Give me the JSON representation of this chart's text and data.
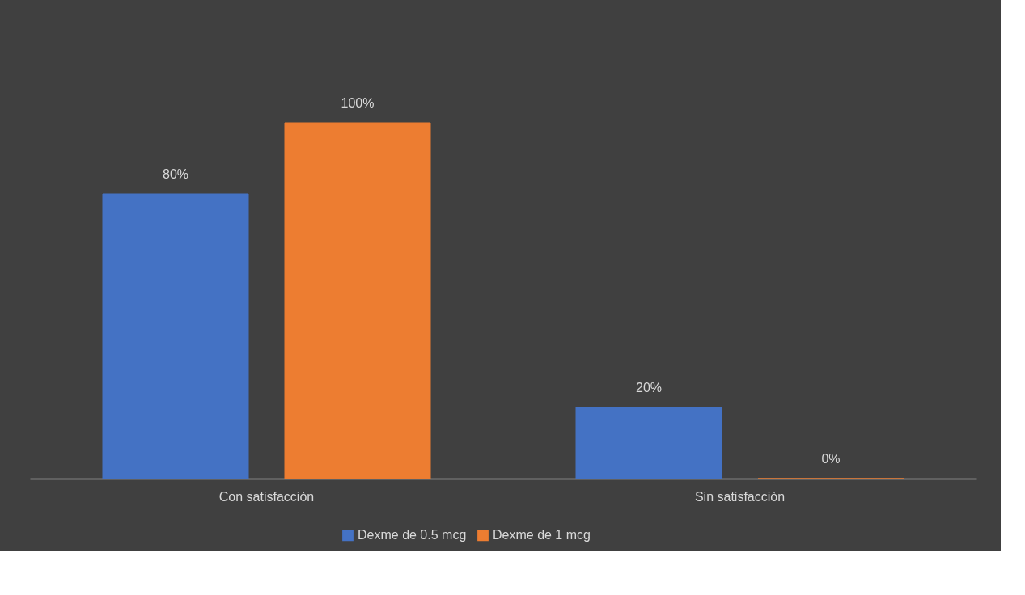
{
  "chart_data": {
    "type": "bar",
    "categories": [
      "Con satisfacciòn",
      "Sin satisfacciòn"
    ],
    "series": [
      {
        "name": "Dexme de 0.5 mcg",
        "color": "#4472c4",
        "values": [
          80,
          20
        ],
        "value_labels": [
          "80%",
          "20%"
        ]
      },
      {
        "name": "Dexme de 1 mcg",
        "color": "#ed7d31",
        "values": [
          100,
          0
        ],
        "value_labels": [
          "100%",
          "0%"
        ]
      }
    ],
    "legend": "bottom",
    "grid": false
  }
}
